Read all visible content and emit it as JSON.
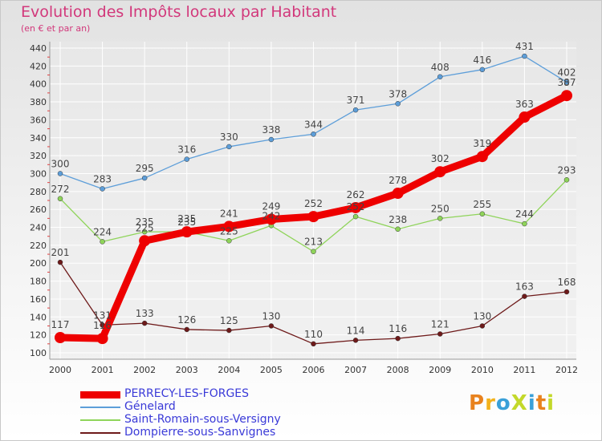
{
  "title": "Evolution des Impôts locaux par Habitant",
  "subtitle": "(en € et par an)",
  "logo_text": "ProXiti",
  "logo_colors": [
    "#e8821e",
    "#f3b21b",
    "#3aa0d8",
    "#c3d82a",
    "#3aa0d8",
    "#e8821e",
    "#c3d82a"
  ],
  "colors": {
    "title": "#d2387b",
    "grid": "#ffffff",
    "axis": "#9a9a9a",
    "minor_ticks": "#e04040"
  },
  "chart_data": {
    "type": "line",
    "title": "Evolution des Impôts locaux par Habitant",
    "subtitle": "(en € et par an)",
    "x": [
      "2000",
      "2001",
      "2002",
      "2003",
      "2004",
      "2005",
      "2006",
      "2007",
      "2008",
      "2009",
      "2010",
      "2011",
      "2012"
    ],
    "ylim": [
      100,
      440
    ],
    "yticks": [
      100,
      120,
      140,
      160,
      180,
      200,
      220,
      240,
      260,
      280,
      300,
      320,
      340,
      360,
      380,
      400,
      420,
      440
    ],
    "grid": true,
    "legend_position": "bottom-left",
    "series": [
      {
        "name": "PERRECY-LES-FORGES",
        "values": [
          117,
          116,
          225,
          235,
          241,
          249,
          252,
          262,
          278,
          302,
          319,
          363,
          387
        ],
        "labels": [
          "117",
          "116",
          "225",
          "235",
          "241",
          "249",
          "252",
          "262",
          "278",
          "302",
          "319",
          "363",
          "387"
        ],
        "color": "#ee0000",
        "line_width": 9,
        "marker_radius": 7
      },
      {
        "name": "Génelard",
        "values": [
          300,
          283,
          295,
          316,
          330,
          338,
          344,
          371,
          378,
          408,
          416,
          431,
          402
        ],
        "labels": [
          "300",
          "283",
          "295",
          "316",
          "330",
          "338",
          "344",
          "371",
          "378",
          "408",
          "416",
          "431",
          "402"
        ],
        "color": "#5d9ed9",
        "line_width": 1.3,
        "marker_radius": 3
      },
      {
        "name": "Saint-Romain-sous-Versigny",
        "values": [
          272,
          224,
          235,
          235,
          225,
          242,
          213,
          252,
          238,
          250,
          255,
          244,
          293
        ],
        "labels": [
          "272",
          "224",
          "235",
          "235",
          "225",
          "242",
          "213",
          "252",
          "238",
          "250",
          "255",
          "244",
          "293"
        ],
        "color": "#8fd45a",
        "line_width": 1.3,
        "marker_radius": 3
      },
      {
        "name": "Dompierre-sous-Sanvignes",
        "values": [
          201,
          131,
          133,
          126,
          125,
          130,
          110,
          114,
          116,
          121,
          130,
          163,
          168
        ],
        "labels": [
          "201",
          "131",
          "133",
          "126",
          "125",
          "130",
          "110",
          "114",
          "116",
          "121",
          "130",
          "163",
          "168"
        ],
        "color": "#6e1a1a",
        "line_width": 1.3,
        "marker_radius": 3
      }
    ]
  }
}
